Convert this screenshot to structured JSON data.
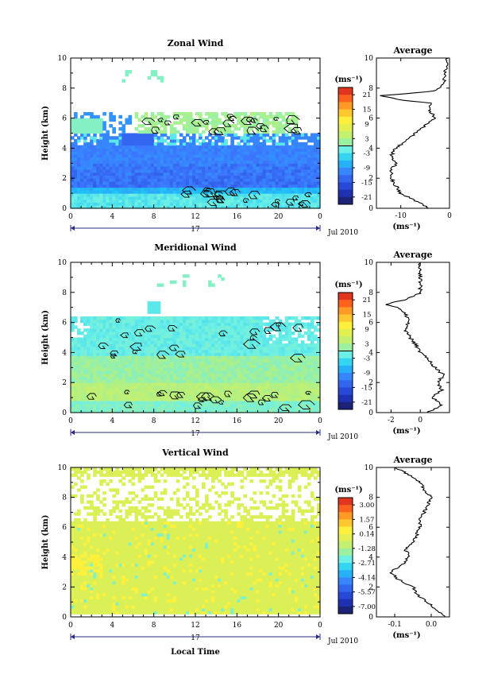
{
  "chart_data": [
    {
      "type": "heatmap",
      "title": "Zonal Wind",
      "xlabel": "",
      "ylabel": "Height (km)",
      "xlim": [
        0,
        24
      ],
      "ylim": [
        0,
        10
      ],
      "x_ticks": [
        "0",
        "4",
        "8",
        "12",
        "16",
        "20",
        "0"
      ],
      "y_ticks": [
        "0",
        "2",
        "4",
        "6",
        "8",
        "10"
      ],
      "date_label": "17",
      "date_suffix": "Jul 2010",
      "colorbar": {
        "unit": "(ms⁻¹)",
        "labels": [
          "21",
          "15",
          "9",
          "3",
          "-3",
          "-9",
          "-15",
          "-21"
        ],
        "vmin": -24,
        "vmax": 24
      },
      "profile": {
        "title": "Average",
        "xlabel": "(ms⁻¹)",
        "xlim": [
          -15,
          0
        ],
        "x_ticks": [
          -10,
          0
        ],
        "y": [
          0,
          0.5,
          1,
          1.5,
          2,
          2.5,
          3,
          3.5,
          4,
          4.5,
          5,
          5.5,
          6,
          6.5,
          7,
          7.2,
          7.5,
          7.8,
          8,
          8.5,
          9,
          9.5,
          10
        ],
        "x": [
          -4,
          -7,
          -10,
          -11,
          -12,
          -12,
          -11,
          -12,
          -11,
          -9,
          -7,
          -5,
          -3,
          -4,
          -4,
          -10,
          -14,
          -3,
          -2,
          -1,
          -1,
          -0.5,
          -0.5
        ]
      }
    },
    {
      "type": "heatmap",
      "title": "Meridional Wind",
      "xlabel": "",
      "ylabel": "Height (km)",
      "xlim": [
        0,
        24
      ],
      "ylim": [
        0,
        10
      ],
      "x_ticks": [
        "0",
        "4",
        "8",
        "12",
        "16",
        "20",
        "0"
      ],
      "y_ticks": [
        "0",
        "2",
        "4",
        "6",
        "8",
        "10"
      ],
      "date_label": "17",
      "date_suffix": "Jul 2010",
      "colorbar": {
        "unit": "(ms⁻¹)",
        "labels": [
          "21",
          "15",
          "9",
          "3",
          "-3",
          "-9",
          "-15",
          "-21"
        ],
        "vmin": -24,
        "vmax": 24
      },
      "profile": {
        "title": "Average",
        "xlabel": "(ms⁻¹)",
        "xlim": [
          -3,
          2
        ],
        "x_ticks": [
          -2,
          0
        ],
        "y": [
          0,
          0.5,
          1,
          1.5,
          2,
          2.5,
          3,
          3.5,
          4,
          4.5,
          5,
          5.5,
          6,
          6.5,
          7,
          7.2,
          7.5,
          7.8,
          8,
          8.5,
          9,
          9.5,
          10
        ],
        "x": [
          0.5,
          1.5,
          0.8,
          1.5,
          1.2,
          1.6,
          1.0,
          0.6,
          0.0,
          -0.3,
          -0.7,
          -1.0,
          -0.8,
          -1.0,
          -1.5,
          -2.5,
          -1.0,
          -0.3,
          0.0,
          0.0,
          0.0,
          0.0,
          0.0
        ]
      }
    },
    {
      "type": "heatmap",
      "title": "Vertical Wind",
      "xlabel": "Local Time",
      "ylabel": "Height (km)",
      "xlim": [
        0,
        24
      ],
      "ylim": [
        0,
        10
      ],
      "x_ticks": [
        "0",
        "4",
        "8",
        "12",
        "16",
        "20",
        "0"
      ],
      "y_ticks": [
        "0",
        "2",
        "4",
        "6",
        "8",
        "10"
      ],
      "date_label": "17",
      "date_suffix": "Jul 2010",
      "colorbar": {
        "unit": "(ms⁻¹)",
        "labels": [
          "3.00",
          "1.57",
          "0.14",
          "-1.28",
          "-2.71",
          "-4.14",
          "-5.57",
          "-7.00"
        ],
        "vmin": -7.7,
        "vmax": 3.7
      },
      "profile": {
        "title": "Average",
        "xlabel": "(ms⁻¹)",
        "xlim": [
          -0.15,
          0.05
        ],
        "x_ticks": [
          -0.1,
          0.0
        ],
        "tick_labels": [
          "-0.1",
          "0.0"
        ],
        "y": [
          0,
          0.5,
          1,
          1.5,
          2,
          2.5,
          3,
          3.5,
          4,
          4.5,
          5,
          5.5,
          6,
          6.5,
          7,
          7.5,
          8,
          8.5,
          9,
          9.5,
          10
        ],
        "x": [
          0.04,
          0.01,
          -0.01,
          -0.04,
          -0.05,
          -0.09,
          -0.11,
          -0.08,
          -0.06,
          -0.07,
          -0.05,
          -0.04,
          -0.03,
          -0.03,
          -0.02,
          -0.01,
          0.0,
          -0.02,
          -0.03,
          -0.06,
          -0.1
        ]
      }
    }
  ]
}
